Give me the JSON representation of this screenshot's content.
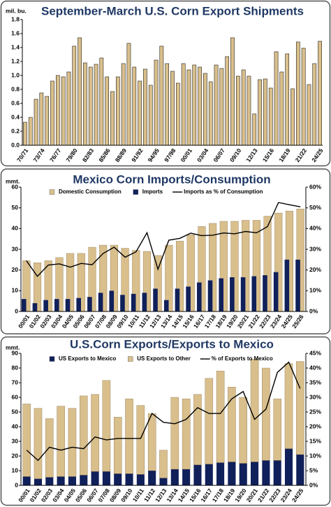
{
  "chart_data": [
    {
      "type": "bar",
      "title": "September-March U.S. Corn Export Shipments",
      "y_label": "mil. bu.",
      "categories": [
        "70/71",
        null,
        null,
        "73/74",
        null,
        null,
        "76/77",
        null,
        null,
        "79/80",
        null,
        null,
        "82/83",
        null,
        null,
        "85/86",
        null,
        null,
        "88/89",
        null,
        null,
        "91/92",
        null,
        null,
        "94/95",
        null,
        null,
        "97/98",
        null,
        null,
        "00/01",
        null,
        null,
        "03/04",
        null,
        null,
        "06/07",
        null,
        null,
        "09/10",
        null,
        null,
        "12/13",
        null,
        null,
        "15/16",
        null,
        null,
        "18/19",
        null,
        null,
        "21/22",
        null,
        null,
        "24/25"
      ],
      "values": [
        0.33,
        0.4,
        0.66,
        0.75,
        0.7,
        0.92,
        1.0,
        0.98,
        1.05,
        1.42,
        1.54,
        1.18,
        1.12,
        1.16,
        1.25,
        0.98,
        0.77,
        0.98,
        1.17,
        1.46,
        1.12,
        0.92,
        1.09,
        0.86,
        1.22,
        1.42,
        1.17,
        1.06,
        0.89,
        1.17,
        1.08,
        1.15,
        1.12,
        1.03,
        0.91,
        1.15,
        1.1,
        1.27,
        1.54,
        0.99,
        1.08,
        0.99,
        0.45,
        0.94,
        0.95,
        0.82,
        1.34,
        1.05,
        1.31,
        0.81,
        1.48,
        1.39,
        0.87,
        1.17,
        1.49
      ],
      "color": "#d9bf8c",
      "ylim": [
        0,
        1.8
      ],
      "yticks": [
        {
          "value": 0,
          "label": "0.0"
        },
        {
          "value": 0.2,
          "label": "0.2"
        },
        {
          "value": 0.4,
          "label": "0.4"
        },
        {
          "value": 0.6,
          "label": "0.6"
        },
        {
          "value": 0.8,
          "label": "0.8"
        },
        {
          "value": 1,
          "label": "1.0"
        },
        {
          "value": 1.2,
          "label": "1.2"
        },
        {
          "value": 1.4,
          "label": "1.4"
        },
        {
          "value": 1.6,
          "label": "1.6"
        },
        {
          "value": 1.8,
          "label": "1.8"
        }
      ],
      "grid": false
    },
    {
      "type": "bar",
      "barmode": "overlap",
      "title": "Mexico Corn Imports/Consumption",
      "y_label": "mmt.",
      "categories": [
        "00/01",
        "01/02",
        "02/03",
        "03/04",
        "04/05",
        "05/06",
        "06/07",
        "07/08",
        "08/09",
        "09/10",
        "10/11",
        "11/12",
        "12/13",
        "13/14",
        "14/15",
        "15/16",
        "16/17",
        "17/18",
        "18/19",
        "19/20",
        "20/21",
        "21/22",
        "22/23",
        "23/24",
        "24/25",
        "25/26"
      ],
      "series": [
        {
          "name": "Domestic Consumption",
          "type": "bar",
          "color": "#d9bf8c",
          "values": [
            24.5,
            23.5,
            24.5,
            26,
            28,
            28,
            31,
            32,
            32,
            30.5,
            29.5,
            29,
            27,
            32,
            34,
            37,
            41,
            42.5,
            43.5,
            43.5,
            44,
            44,
            46,
            47.5,
            48.5,
            49.5
          ]
        },
        {
          "name": "Imports",
          "type": "bar",
          "color": "#10205a",
          "values": [
            6,
            4,
            5.5,
            6,
            6,
            6.5,
            7,
            9,
            10,
            8,
            8.5,
            9,
            11,
            5.5,
            11,
            12,
            14,
            15,
            16,
            16.5,
            16.5,
            17,
            17.5,
            19,
            25,
            25
          ]
        },
        {
          "name": "Imports as % of Consumption",
          "type": "line",
          "axis": "y2",
          "color": "#000000",
          "values": [
            24.5,
            17,
            22.4,
            23,
            21.4,
            23.2,
            22.6,
            28,
            31,
            26.2,
            28.8,
            38,
            20.4,
            34.4,
            35.3,
            37.8,
            36.6,
            36.8,
            37.9,
            37.5,
            38.6,
            38,
            41,
            52.6,
            51.5,
            50.5
          ]
        }
      ],
      "ylim": [
        0,
        60
      ],
      "yticks": [
        0,
        10,
        20,
        30,
        40,
        50,
        60
      ],
      "y2lim": [
        0,
        60
      ],
      "y2ticks": [
        {
          "value": 0,
          "label": "0%"
        },
        {
          "value": 10,
          "label": "10%"
        },
        {
          "value": 20,
          "label": "20%"
        },
        {
          "value": 30,
          "label": "30%"
        },
        {
          "value": 40,
          "label": "40%"
        },
        {
          "value": 50,
          "label": "50%"
        },
        {
          "value": 60,
          "label": "60%"
        }
      ],
      "grid": false
    },
    {
      "type": "bar",
      "barmode": "stacked",
      "title": "U.S.Corn Exports/Exports to Mexico",
      "y_label": "mmt.",
      "categories": [
        "00/01",
        "01/02",
        "02/03",
        "03/04",
        "04/05",
        "05/06",
        "06/07",
        "07/08",
        "08/09",
        "09/10",
        "10/11",
        "11/12",
        "12/13",
        "13/14",
        "14/15",
        "15/16",
        "16/17",
        "17/18",
        "18/19",
        "19/20",
        "20/21",
        "21/22",
        "22/23",
        "23/24",
        "24/25"
      ],
      "series": [
        {
          "name": "US Exports to Mexico",
          "type": "bar",
          "color": "#10205a",
          "values": [
            6,
            4.5,
            5.5,
            6,
            6,
            7,
            9.5,
            9.5,
            8,
            8,
            7.5,
            10,
            5,
            11,
            11,
            14,
            14.5,
            15.5,
            16,
            15,
            16,
            17,
            17,
            25,
            21
          ]
        },
        {
          "name": "US Exports to Other",
          "type": "bar",
          "color": "#d9bf8c",
          "values": [
            49.5,
            48,
            40,
            48,
            46.5,
            54,
            52.5,
            62,
            38.5,
            51,
            47,
            39,
            19,
            49,
            48,
            48,
            58.5,
            62.5,
            51,
            45,
            70,
            63,
            42,
            58,
            63.5
          ]
        },
        {
          "name": "% of Exports to Mexico",
          "type": "line",
          "axis": "y2",
          "color": "#000000",
          "values": [
            12,
            8.5,
            13,
            12,
            13,
            12.5,
            16.5,
            15.5,
            16,
            16,
            16,
            24.5,
            21.5,
            21,
            22.5,
            26.5,
            24.5,
            24.5,
            29.5,
            32,
            22.5,
            26,
            38.5,
            42,
            33
          ]
        }
      ],
      "ylim": [
        0,
        90
      ],
      "yticks": [
        0,
        10,
        20,
        30,
        40,
        50,
        60,
        70,
        80,
        90
      ],
      "y2lim": [
        0,
        45
      ],
      "y2ticks": [
        {
          "value": 0,
          "label": "0%"
        },
        {
          "value": 5,
          "label": "5%"
        },
        {
          "value": 10,
          "label": "10%"
        },
        {
          "value": 15,
          "label": "15%"
        },
        {
          "value": 20,
          "label": "20%"
        },
        {
          "value": 25,
          "label": "25%"
        },
        {
          "value": 30,
          "label": "30%"
        },
        {
          "value": 35,
          "label": "35%"
        },
        {
          "value": 40,
          "label": "40%"
        },
        {
          "value": 45,
          "label": "45%"
        }
      ],
      "grid": false
    }
  ]
}
